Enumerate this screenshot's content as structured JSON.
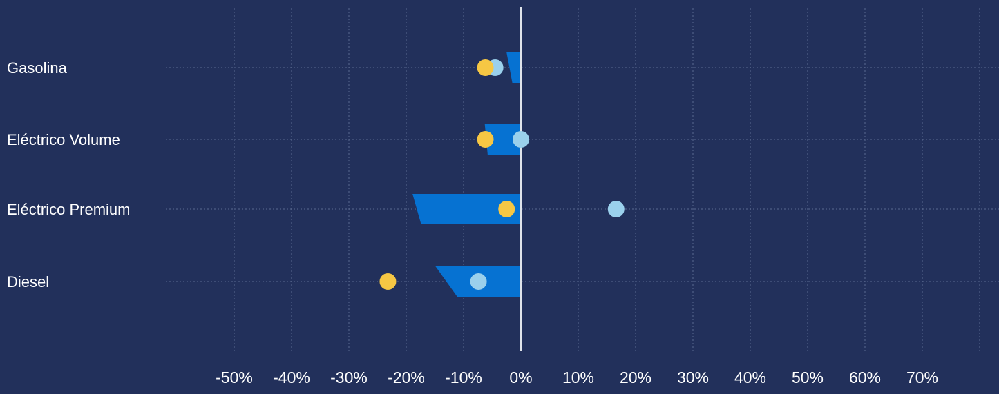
{
  "chart_data": {
    "type": "bar",
    "categories": [
      "Gasolina",
      "Eléctrico Volume",
      "Eléctrico Premium",
      "Diesel"
    ],
    "x_ticks": [
      -50,
      -40,
      -30,
      -20,
      -10,
      0,
      10,
      20,
      30,
      40,
      50,
      60,
      70
    ],
    "x_tick_labels": [
      "-50%",
      "-40%",
      "-30%",
      "-20%",
      "-10%",
      "0%",
      "10%",
      "20%",
      "30%",
      "40%",
      "50%",
      "60%",
      "70%"
    ],
    "xlim": [
      -50,
      70
    ],
    "x_unit": "%",
    "grid": true,
    "bars": [
      {
        "category": "Gasolina",
        "top_start": -2.5,
        "bottom_start": -1.5,
        "end": 0
      },
      {
        "category": "Eléctrico Volume",
        "top_start": -6.3,
        "bottom_start": -5.8,
        "end": 0
      },
      {
        "category": "Eléctrico Premium",
        "top_start": -18.9,
        "bottom_start": -17.4,
        "end": 0
      },
      {
        "category": "Diesel",
        "top_start": -14.9,
        "bottom_start": -11.1,
        "end": 0
      }
    ],
    "series": [
      {
        "color": "#f6c744",
        "values": [
          -6.2,
          -6.2,
          -2.5,
          -23.2
        ]
      },
      {
        "color": "#9ad0ec",
        "values": [
          -4.5,
          0.0,
          16.6,
          -7.4
        ]
      }
    ],
    "colors": {
      "background": "#22305b",
      "bar": "#0672d2",
      "zero_line": "#dfe3ea",
      "grid": "#5b6a90",
      "text": "#ffffff"
    }
  }
}
